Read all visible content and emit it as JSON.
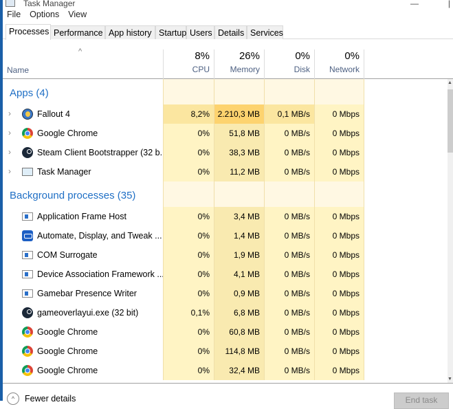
{
  "window": {
    "title": "Task Manager"
  },
  "menu": [
    "File",
    "Options",
    "View"
  ],
  "tabs": [
    "Processes",
    "Performance",
    "App history",
    "Startup",
    "Users",
    "Details",
    "Services"
  ],
  "header": {
    "name": "Name",
    "columns": [
      {
        "pct": "8%",
        "label": "CPU"
      },
      {
        "pct": "26%",
        "label": "Memory"
      },
      {
        "pct": "0%",
        "label": "Disk"
      },
      {
        "pct": "0%",
        "label": "Network"
      }
    ]
  },
  "colors": {
    "cell": "#fff4c4",
    "memory_cell": "#f9eab0",
    "hot_memory": "#fdd36f",
    "hot_cpu": "#fbe6a0",
    "group_title": "#1f6fc5"
  },
  "groups": [
    {
      "title": "Apps (4)",
      "rows": [
        {
          "icon": "fallout-icon",
          "name": "Fallout 4",
          "expandable": true,
          "cpu": "8,2%",
          "mem": "2.210,3 MB",
          "disk": "0,1 MB/s",
          "net": "0 Mbps"
        },
        {
          "icon": "chrome-icon",
          "name": "Google Chrome",
          "expandable": true,
          "cpu": "0%",
          "mem": "51,8 MB",
          "disk": "0 MB/s",
          "net": "0 Mbps"
        },
        {
          "icon": "steam-icon",
          "name": "Steam Client Bootstrapper (32 b...",
          "expandable": true,
          "cpu": "0%",
          "mem": "38,3 MB",
          "disk": "0 MB/s",
          "net": "0 Mbps"
        },
        {
          "icon": "task-manager-icon",
          "name": "Task Manager",
          "expandable": true,
          "cpu": "0%",
          "mem": "11,2 MB",
          "disk": "0 MB/s",
          "net": "0 Mbps"
        }
      ]
    },
    {
      "title": "Background processes (35)",
      "rows": [
        {
          "icon": "app-frame-icon",
          "name": "Application Frame Host",
          "cpu": "0%",
          "mem": "3,4 MB",
          "disk": "0 MB/s",
          "net": "0 Mbps"
        },
        {
          "icon": "car-icon",
          "name": "Automate, Display, and Tweak ...",
          "cpu": "0%",
          "mem": "1,4 MB",
          "disk": "0 MB/s",
          "net": "0 Mbps"
        },
        {
          "icon": "app-frame-icon",
          "name": "COM Surrogate",
          "cpu": "0%",
          "mem": "1,9 MB",
          "disk": "0 MB/s",
          "net": "0 Mbps"
        },
        {
          "icon": "app-frame-icon",
          "name": "Device Association Framework ...",
          "cpu": "0%",
          "mem": "4,1 MB",
          "disk": "0 MB/s",
          "net": "0 Mbps"
        },
        {
          "icon": "app-frame-icon",
          "name": "Gamebar Presence Writer",
          "cpu": "0%",
          "mem": "0,9 MB",
          "disk": "0 MB/s",
          "net": "0 Mbps"
        },
        {
          "icon": "steam-icon",
          "name": "gameoverlayui.exe (32 bit)",
          "cpu": "0,1%",
          "mem": "6,8 MB",
          "disk": "0 MB/s",
          "net": "0 Mbps"
        },
        {
          "icon": "chrome-icon",
          "name": "Google Chrome",
          "cpu": "0%",
          "mem": "60,8 MB",
          "disk": "0 MB/s",
          "net": "0 Mbps"
        },
        {
          "icon": "chrome-icon",
          "name": "Google Chrome",
          "cpu": "0%",
          "mem": "114,8 MB",
          "disk": "0 MB/s",
          "net": "0 Mbps"
        },
        {
          "icon": "chrome-icon",
          "name": "Google Chrome",
          "cpu": "0%",
          "mem": "32,4 MB",
          "disk": "0 MB/s",
          "net": "0 Mbps"
        }
      ]
    }
  ],
  "footer": {
    "fewer_details": "Fewer details",
    "end_task": "End task"
  }
}
